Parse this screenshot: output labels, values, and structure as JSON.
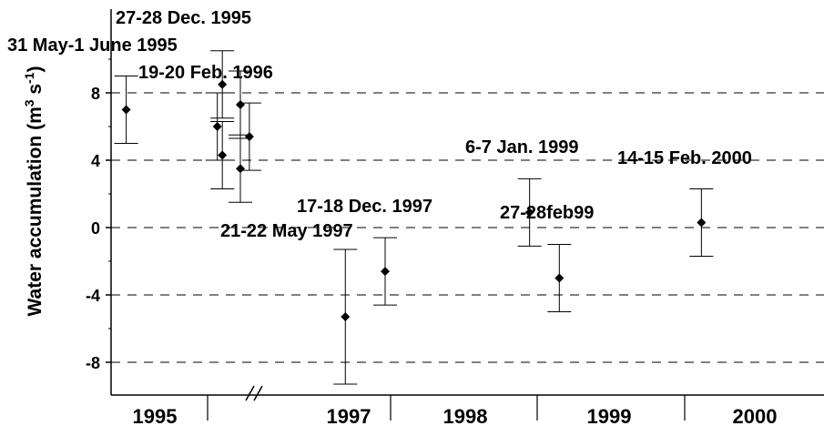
{
  "chart_data": {
    "type": "scatter",
    "title": "",
    "xlabel": "",
    "ylabel": "Water accumulation (m",
    "ylabel_sup": "3",
    "ylabel_mid": " s",
    "ylabel_sup2": "-1",
    "ylabel_end": ")",
    "ylim": [
      -10.2,
      10.8
    ],
    "yticks": [
      8,
      4,
      0,
      -4,
      -8
    ],
    "ytick_labels": [
      "8",
      "4",
      "0",
      "-4",
      "-8"
    ],
    "grid": "horizontal dashed",
    "x_categories": [
      "1995",
      "1997",
      "1998",
      "1999",
      "2000"
    ],
    "axis_break": true,
    "points": [
      {
        "x": 0.13,
        "y": 7.0,
        "err_low": 5.0,
        "err_high": 9.0
      },
      {
        "x": 0.585,
        "y": 6.0,
        "err_low": 4.0,
        "err_high": 8.0
      },
      {
        "x": 0.61,
        "y": 4.3,
        "err_low": 2.3,
        "err_high": 6.3
      },
      {
        "x": 0.61,
        "y": 8.5,
        "err_low": 6.5,
        "err_high": 10.5
      },
      {
        "x": 0.7,
        "y": 7.3,
        "err_low": 5.3,
        "err_high": 9.3
      },
      {
        "x": 0.7,
        "y": 3.5,
        "err_low": 1.5,
        "err_high": 5.5
      },
      {
        "x": 0.745,
        "y": 5.4,
        "err_low": 3.4,
        "err_high": 7.4
      },
      {
        "x": 1.53,
        "y": -5.3,
        "err_low": -9.3,
        "err_high": -1.3
      },
      {
        "x": 2.0,
        "y": -2.6,
        "err_low": -4.6,
        "err_high": -0.6
      },
      {
        "x": 2.95,
        "y": 0.9,
        "err_low": -1.1,
        "err_high": 2.9
      },
      {
        "x": 3.15,
        "y": -3.0,
        "err_low": -5.0,
        "err_high": -1.0
      },
      {
        "x": 4.12,
        "y": 0.3,
        "err_low": -1.7,
        "err_high": 2.3
      }
    ],
    "annotations": [
      "27-28 Dec. 1995",
      "31 May-1 June 1995",
      "19-20 Feb. 1996",
      "17-18 Dec. 1997",
      "21-22 May 1997",
      "6-7 Jan. 1999",
      "27-28feb99",
      "14-15 Feb. 2000"
    ]
  }
}
